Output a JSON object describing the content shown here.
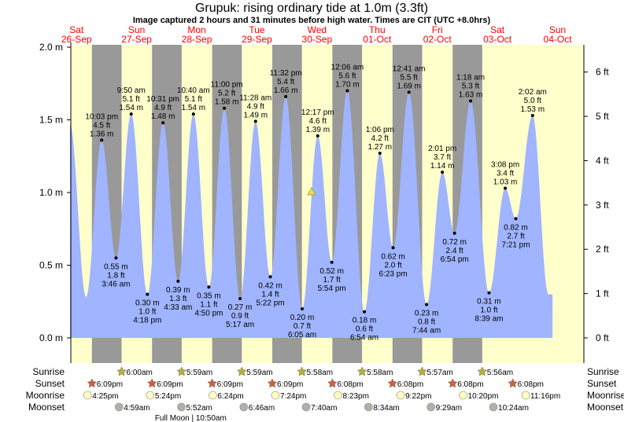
{
  "title": "Grupuk: rising  ordinary tide at 1.0m (3.3ft)",
  "subtitle": "Image captured 2 hours and 31 minutes before high water. Times are CIT (UTC +8.0hrs)",
  "colors": {
    "day": "#ffffcc",
    "night": "#999999",
    "water": "#a0b4ff",
    "day_label": "#ff0000",
    "sunrise": "#b8b030",
    "sunset": "#d0603a",
    "moonrise": "#ffffc0",
    "moonset": "#b0b0a8",
    "marker": "#f0e040"
  },
  "chart_data": {
    "type": "area",
    "title": "Grupuk: rising  ordinary tide at 1.0m (3.3ft)",
    "x_unit": "hours since 26-Sep 00:00",
    "ylim_m": [
      0,
      2.0
    ],
    "left_ticks": [
      "0.0 m",
      "0.5 m",
      "1.0 m",
      "1.5 m",
      "2.0 m"
    ],
    "right_ticks": [
      "0 ft",
      "1 ft",
      "2 ft",
      "3 ft",
      "4 ft",
      "5 ft",
      "6 ft"
    ],
    "days": [
      {
        "dow": "Sat",
        "date": "26-Sep"
      },
      {
        "dow": "Sun",
        "date": "27-Sep"
      },
      {
        "dow": "Mon",
        "date": "28-Sep"
      },
      {
        "dow": "Tue",
        "date": "29-Sep"
      },
      {
        "dow": "Wed",
        "date": "30-Sep"
      },
      {
        "dow": "Thu",
        "date": "01-Oct"
      },
      {
        "dow": "Fri",
        "date": "02-Oct"
      },
      {
        "dow": "Sat",
        "date": "03-Oct"
      },
      {
        "dow": "Sun",
        "date": "04-Oct"
      }
    ],
    "curve_start": {
      "t": 9.4,
      "m": 1.47
    },
    "curve_unlabeled_low": {
      "t": 15.8,
      "m": 0.28
    },
    "curve_end": {
      "t": 202,
      "m": 0.41
    },
    "extremes": [
      {
        "type": "high",
        "t": 22.05,
        "time": "10:03 pm",
        "ft": "4.5 ft",
        "m": 1.36,
        "m_label": "1.36 m"
      },
      {
        "type": "low",
        "t": 27.77,
        "time": "3:46 am",
        "ft": "1.8 ft",
        "m": 0.55,
        "m_label": "0.55 m"
      },
      {
        "type": "high",
        "t": 33.83,
        "time": "9:50 am",
        "ft": "5.1 ft",
        "m": 1.54,
        "m_label": "1.54 m"
      },
      {
        "type": "low",
        "t": 40.3,
        "time": "4:18 pm",
        "ft": "1.0 ft",
        "m": 0.3,
        "m_label": "0.30 m"
      },
      {
        "type": "high",
        "t": 46.52,
        "time": "10:31 pm",
        "ft": "4.9 ft",
        "m": 1.48,
        "m_label": "1.48 m"
      },
      {
        "type": "low",
        "t": 52.55,
        "time": "4:33 am",
        "ft": "1.3 ft",
        "m": 0.39,
        "m_label": "0.39 m"
      },
      {
        "type": "high",
        "t": 58.67,
        "time": "10:40 am",
        "ft": "5.1 ft",
        "m": 1.54,
        "m_label": "1.54 m"
      },
      {
        "type": "low",
        "t": 64.83,
        "time": "4:50 pm",
        "ft": "1.1 ft",
        "m": 0.35,
        "m_label": "0.35 m"
      },
      {
        "type": "high",
        "t": 71.0,
        "time": "11:00 pm",
        "ft": "5.2 ft",
        "m": 1.58,
        "m_label": "1.58 m"
      },
      {
        "type": "low",
        "t": 77.28,
        "time": "5:17 am",
        "ft": "0.9 ft",
        "m": 0.27,
        "m_label": "0.27 m"
      },
      {
        "type": "high",
        "t": 83.47,
        "time": "11:28 am",
        "ft": "4.9 ft",
        "m": 1.49,
        "m_label": "1.49 m"
      },
      {
        "type": "low",
        "t": 89.37,
        "time": "5:22 pm",
        "ft": "1.4 ft",
        "m": 0.42,
        "m_label": "0.42 m"
      },
      {
        "type": "high",
        "t": 95.53,
        "time": "11:32 pm",
        "ft": "5.4 ft",
        "m": 1.66,
        "m_label": "1.66 m"
      },
      {
        "type": "low",
        "t": 102.08,
        "time": "6:05 am",
        "ft": "0.7 ft",
        "m": 0.2,
        "m_label": "0.20 m"
      },
      {
        "type": "high",
        "t": 108.28,
        "time": "12:17 pm",
        "ft": "4.6 ft",
        "m": 1.39,
        "m_label": "1.39 m"
      },
      {
        "type": "low",
        "t": 113.9,
        "time": "5:54 pm",
        "ft": "1.7 ft",
        "m": 0.52,
        "m_label": "0.52 m"
      },
      {
        "type": "high",
        "t": 120.1,
        "time": "12:06 am",
        "ft": "5.6 ft",
        "m": 1.7,
        "m_label": "1.70 m"
      },
      {
        "type": "low",
        "t": 126.9,
        "time": "6:54 am",
        "ft": "0.6 ft",
        "m": 0.18,
        "m_label": "0.18 m"
      },
      {
        "type": "high",
        "t": 133.1,
        "time": "1:06 pm",
        "ft": "4.2 ft",
        "m": 1.27,
        "m_label": "1.27 m"
      },
      {
        "type": "low",
        "t": 138.38,
        "time": "6:23 pm",
        "ft": "2.0 ft",
        "m": 0.62,
        "m_label": "0.62 m"
      },
      {
        "type": "high",
        "t": 144.68,
        "time": "12:41 am",
        "ft": "5.5 ft",
        "m": 1.69,
        "m_label": "1.69 m"
      },
      {
        "type": "low",
        "t": 151.73,
        "time": "7:44 am",
        "ft": "0.8 ft",
        "m": 0.23,
        "m_label": "0.23 m"
      },
      {
        "type": "high",
        "t": 158.02,
        "time": "2:01 pm",
        "ft": "3.7 ft",
        "m": 1.14,
        "m_label": "1.14 m"
      },
      {
        "type": "low",
        "t": 162.9,
        "time": "6:54 pm",
        "ft": "2.4 ft",
        "m": 0.72,
        "m_label": "0.72 m"
      },
      {
        "type": "high",
        "t": 169.3,
        "time": "1:18 am",
        "ft": "5.3 ft",
        "m": 1.63,
        "m_label": "1.63 m"
      },
      {
        "type": "low",
        "t": 176.65,
        "time": "8:39 am",
        "ft": "1.0 ft",
        "m": 0.31,
        "m_label": "0.31 m"
      },
      {
        "type": "high",
        "t": 183.13,
        "time": "3:08 pm",
        "ft": "3.4 ft",
        "m": 1.03,
        "m_label": "1.03 m"
      },
      {
        "type": "low",
        "t": 187.35,
        "time": "7:21 pm",
        "ft": "2.7 ft",
        "m": 0.82,
        "m_label": "0.82 m"
      },
      {
        "type": "high",
        "t": 194.03,
        "time": "2:02 am",
        "ft": "5.0 ft",
        "m": 1.53,
        "m_label": "1.53 m"
      }
    ],
    "current_marker": {
      "t": 105.8,
      "m": 1.0
    },
    "nights": [
      [
        18.15,
        30.0
      ],
      [
        42.15,
        53.98
      ],
      [
        66.15,
        77.98
      ],
      [
        90.15,
        101.97
      ],
      [
        114.13,
        125.97
      ],
      [
        138.13,
        149.97
      ],
      [
        162.13,
        173.95
      ]
    ]
  },
  "almanac": {
    "row_labels": [
      "Sunrise",
      "Sunset",
      "Moonrise",
      "Moonset"
    ],
    "sunrise": [
      {
        "t": 30.0,
        "label": "6:00am"
      },
      {
        "t": 53.98,
        "label": "5:59am"
      },
      {
        "t": 77.98,
        "label": "5:59am"
      },
      {
        "t": 101.97,
        "label": "5:58am"
      },
      {
        "t": 125.97,
        "label": "5:58am"
      },
      {
        "t": 149.95,
        "label": "5:57am"
      },
      {
        "t": 173.93,
        "label": "5:56am"
      }
    ],
    "sunset": [
      {
        "t": 18.15,
        "label": "6:09pm"
      },
      {
        "t": 42.15,
        "label": "6:09pm"
      },
      {
        "t": 66.15,
        "label": "6:09pm"
      },
      {
        "t": 90.15,
        "label": "6:09pm"
      },
      {
        "t": 114.13,
        "label": "6:08pm"
      },
      {
        "t": 138.13,
        "label": "6:08pm"
      },
      {
        "t": 162.13,
        "label": "6:08pm"
      },
      {
        "t": 186.13,
        "label": "6:08pm"
      }
    ],
    "moonrise": [
      {
        "t": 16.42,
        "label": "4:25pm"
      },
      {
        "t": 41.4,
        "label": "5:24pm"
      },
      {
        "t": 66.4,
        "label": "6:24pm"
      },
      {
        "t": 91.4,
        "label": "7:24pm"
      },
      {
        "t": 116.38,
        "label": "8:23pm"
      },
      {
        "t": 141.37,
        "label": "9:22pm"
      },
      {
        "t": 166.33,
        "label": "10:20pm"
      },
      {
        "t": 191.27,
        "label": "11:16pm"
      }
    ],
    "moonset": [
      {
        "t": 28.98,
        "label": "4:59am"
      },
      {
        "t": 53.87,
        "label": "5:52am"
      },
      {
        "t": 78.77,
        "label": "6:46am"
      },
      {
        "t": 103.67,
        "label": "7:40am"
      },
      {
        "t": 128.57,
        "label": "8:34am"
      },
      {
        "t": 153.48,
        "label": "9:29am"
      },
      {
        "t": 178.4,
        "label": "10:24am"
      }
    ],
    "moon_phase": {
      "t": 58.83,
      "label": "Full Moon | 10:50am"
    }
  }
}
